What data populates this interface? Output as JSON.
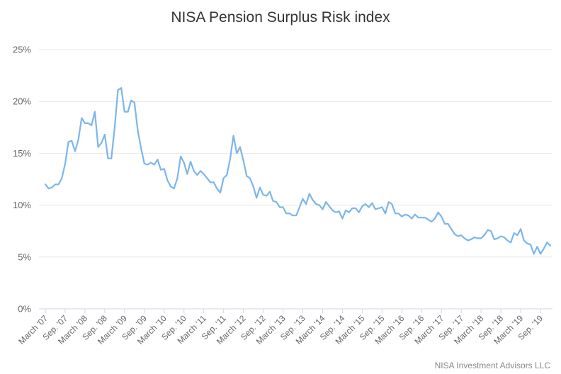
{
  "chart_data": {
    "type": "line",
    "title": "NISA Pension Surplus Risk index",
    "xlabel": "",
    "ylabel": "",
    "ylim": [
      0,
      25
    ],
    "y_ticks": [
      "0%",
      "5%",
      "10%",
      "15%",
      "20%",
      "25%"
    ],
    "x_tick_labels": [
      "March '07",
      "Sep. '07",
      "March '08",
      "Sep. '08",
      "March '09",
      "Sep. '09",
      "March '10",
      "Sep. '10",
      "March '11",
      "Sep. '11",
      "March '12",
      "Sep. '12",
      "March '13",
      "Sep. '13",
      "March '14",
      "Sep. '14",
      "March '15",
      "Sep. '15",
      "March '16",
      "Sep. '16",
      "March '17",
      "Sep. '17",
      "March '18",
      "Sep. '18",
      "March '19",
      "Sep. '19"
    ],
    "series": [
      {
        "color": "#7cb5ec",
        "values": [
          12.0,
          11.6,
          11.7,
          12.0,
          12.0,
          12.6,
          14.0,
          16.1,
          16.2,
          15.2,
          16.3,
          18.4,
          17.9,
          17.9,
          17.7,
          19.0,
          15.6,
          16.0,
          16.8,
          14.5,
          14.5,
          17.5,
          21.1,
          21.3,
          19.0,
          19.0,
          20.1,
          19.9,
          17.2,
          15.5,
          14.0,
          13.9,
          14.1,
          13.9,
          14.4,
          13.4,
          13.5,
          12.4,
          11.8,
          11.6,
          12.6,
          14.7,
          14.1,
          13.0,
          14.2,
          13.3,
          12.9,
          13.3,
          13.0,
          12.6,
          12.2,
          12.2,
          11.6,
          11.2,
          12.6,
          12.9,
          14.5,
          16.7,
          15.0,
          15.6,
          14.3,
          12.8,
          12.6,
          11.8,
          10.7,
          11.7,
          11.0,
          10.9,
          11.3,
          10.4,
          10.3,
          9.8,
          9.8,
          9.2,
          9.2,
          9.0,
          9.0,
          9.8,
          10.6,
          10.1,
          11.1,
          10.5,
          10.1,
          10.0,
          9.6,
          10.3,
          9.9,
          9.5,
          9.3,
          9.4,
          8.7,
          9.5,
          9.3,
          9.7,
          9.7,
          9.3,
          9.9,
          10.1,
          9.8,
          10.2,
          9.6,
          9.7,
          9.8,
          9.2,
          10.3,
          10.1,
          9.2,
          9.2,
          8.9,
          9.1,
          9.0,
          8.7,
          9.1,
          8.8,
          8.8,
          8.8,
          8.6,
          8.4,
          8.7,
          9.3,
          8.9,
          8.2,
          8.2,
          7.7,
          7.2,
          7.0,
          7.1,
          6.8,
          6.6,
          6.7,
          6.9,
          6.8,
          6.8,
          7.1,
          7.6,
          7.5,
          6.7,
          6.8,
          7.0,
          6.9,
          6.6,
          6.4,
          7.3,
          7.1,
          7.7,
          6.6,
          6.3,
          6.2,
          5.3,
          6.0,
          5.3,
          5.8,
          6.4,
          6.1
        ]
      }
    ]
  },
  "credits": "NISA Investment Advisors LLC"
}
